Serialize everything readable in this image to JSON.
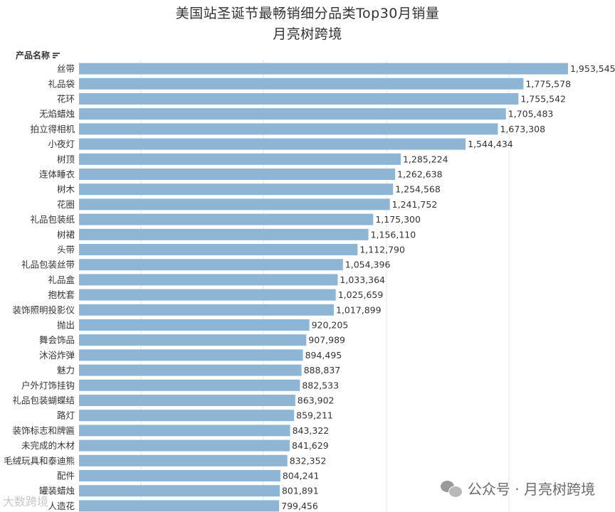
{
  "chart_data": {
    "type": "bar",
    "orientation": "horizontal",
    "title": "美国站圣诞节最畅销细分品类Top30月销量",
    "subtitle": "月亮树跨境",
    "category_header": "产品名称",
    "categories": [
      "丝带",
      "礼品袋",
      "花环",
      "无焰蜡烛",
      "拍立得相机",
      "小夜灯",
      "树顶",
      "连体睡衣",
      "树木",
      "花圈",
      "礼品包装纸",
      "树裙",
      "头带",
      "礼品包装丝带",
      "礼品盒",
      "抱枕套",
      "装饰照明投影仪",
      "抛出",
      "舞会饰品",
      "沐浴炸弹",
      "魅力",
      "户外灯饰挂钩",
      "礼品包装蝴蝶结",
      "路灯",
      "装饰标志和牌匾",
      "未完成的木材",
      "毛绒玩具和泰迪熊",
      "配件",
      "罐装蜡烛",
      "人造花"
    ],
    "values": [
      1953545,
      1775578,
      1755542,
      1705483,
      1673308,
      1544434,
      1285224,
      1262638,
      1254568,
      1241752,
      1175300,
      1156110,
      1112790,
      1054396,
      1033364,
      1025659,
      1017899,
      920205,
      907989,
      894495,
      888837,
      882533,
      863902,
      859211,
      843322,
      841629,
      832352,
      804241,
      801891,
      799456
    ],
    "value_labels": [
      "1,953,545",
      "1,775,578",
      "1,755,542",
      "1,705,483",
      "1,673,308",
      "1,544,434",
      "1,285,224",
      "1,262,638",
      "1,254,568",
      "1,241,752",
      "1,175,300",
      "1,156,110",
      "1,112,790",
      "1,054,396",
      "1,033,364",
      "1,025,659",
      "1,017,899",
      "920,205",
      "907,989",
      "894,495",
      "888,837",
      "882,533",
      "863,902",
      "859,211",
      "843,322",
      "841,629",
      "832,352",
      "804,241",
      "801,891",
      "799,456"
    ],
    "xlim": [
      0,
      1953545
    ],
    "grid": true,
    "bar_color": "#8fb5d4"
  },
  "watermark": {
    "text": "公众号 · 月亮树跨境",
    "icon": "wechat-icon",
    "corner_text": "大数跨境"
  }
}
